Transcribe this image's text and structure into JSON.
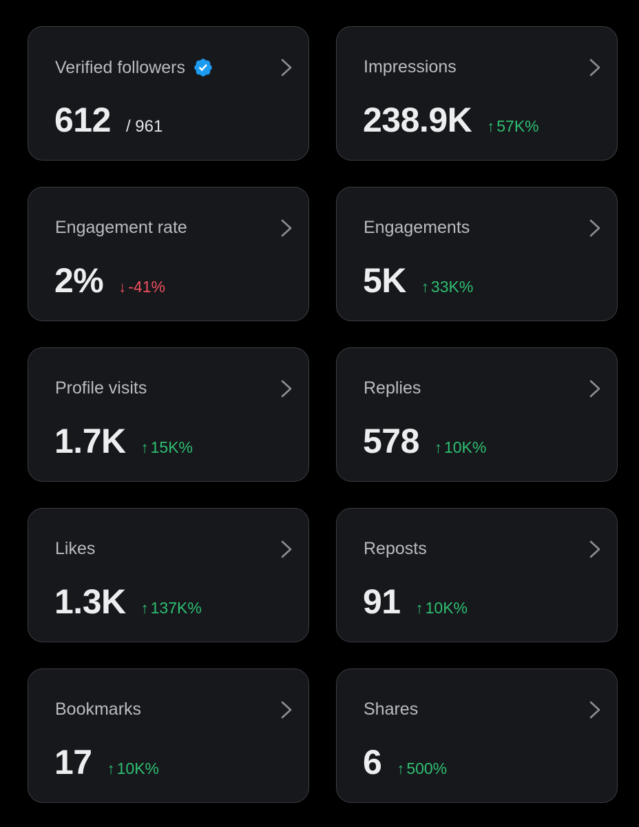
{
  "colors": {
    "background": "#000000",
    "card": "#16181c",
    "card_border": "#3a3d42",
    "positive": "#2fbf71",
    "negative": "#f0505e",
    "verified_badge": "#1d9bf0"
  },
  "cards": [
    {
      "id": "verified-followers",
      "title": "Verified followers",
      "value": "612",
      "secondary": "/ 961",
      "badge_icon": "verified-badge-icon"
    },
    {
      "id": "impressions",
      "title": "Impressions",
      "value": "238.9K",
      "change": "57K%",
      "direction": "up",
      "arrow": "↑"
    },
    {
      "id": "engagement-rate",
      "title": "Engagement rate",
      "value": "2%",
      "change": "-41%",
      "direction": "down",
      "arrow": "↓"
    },
    {
      "id": "engagements",
      "title": "Engagements",
      "value": "5K",
      "change": "33K%",
      "direction": "up",
      "arrow": "↑"
    },
    {
      "id": "profile-visits",
      "title": "Profile visits",
      "value": "1.7K",
      "change": "15K%",
      "direction": "up",
      "arrow": "↑"
    },
    {
      "id": "replies",
      "title": "Replies",
      "value": "578",
      "change": "10K%",
      "direction": "up",
      "arrow": "↑"
    },
    {
      "id": "likes",
      "title": "Likes",
      "value": "1.3K",
      "change": "137K%",
      "direction": "up",
      "arrow": "↑"
    },
    {
      "id": "reposts",
      "title": "Reposts",
      "value": "91",
      "change": "10K%",
      "direction": "up",
      "arrow": "↑"
    },
    {
      "id": "bookmarks",
      "title": "Bookmarks",
      "value": "17",
      "change": "10K%",
      "direction": "up",
      "arrow": "↑"
    },
    {
      "id": "shares",
      "title": "Shares",
      "value": "6",
      "change": "500%",
      "direction": "up",
      "arrow": "↑"
    }
  ]
}
